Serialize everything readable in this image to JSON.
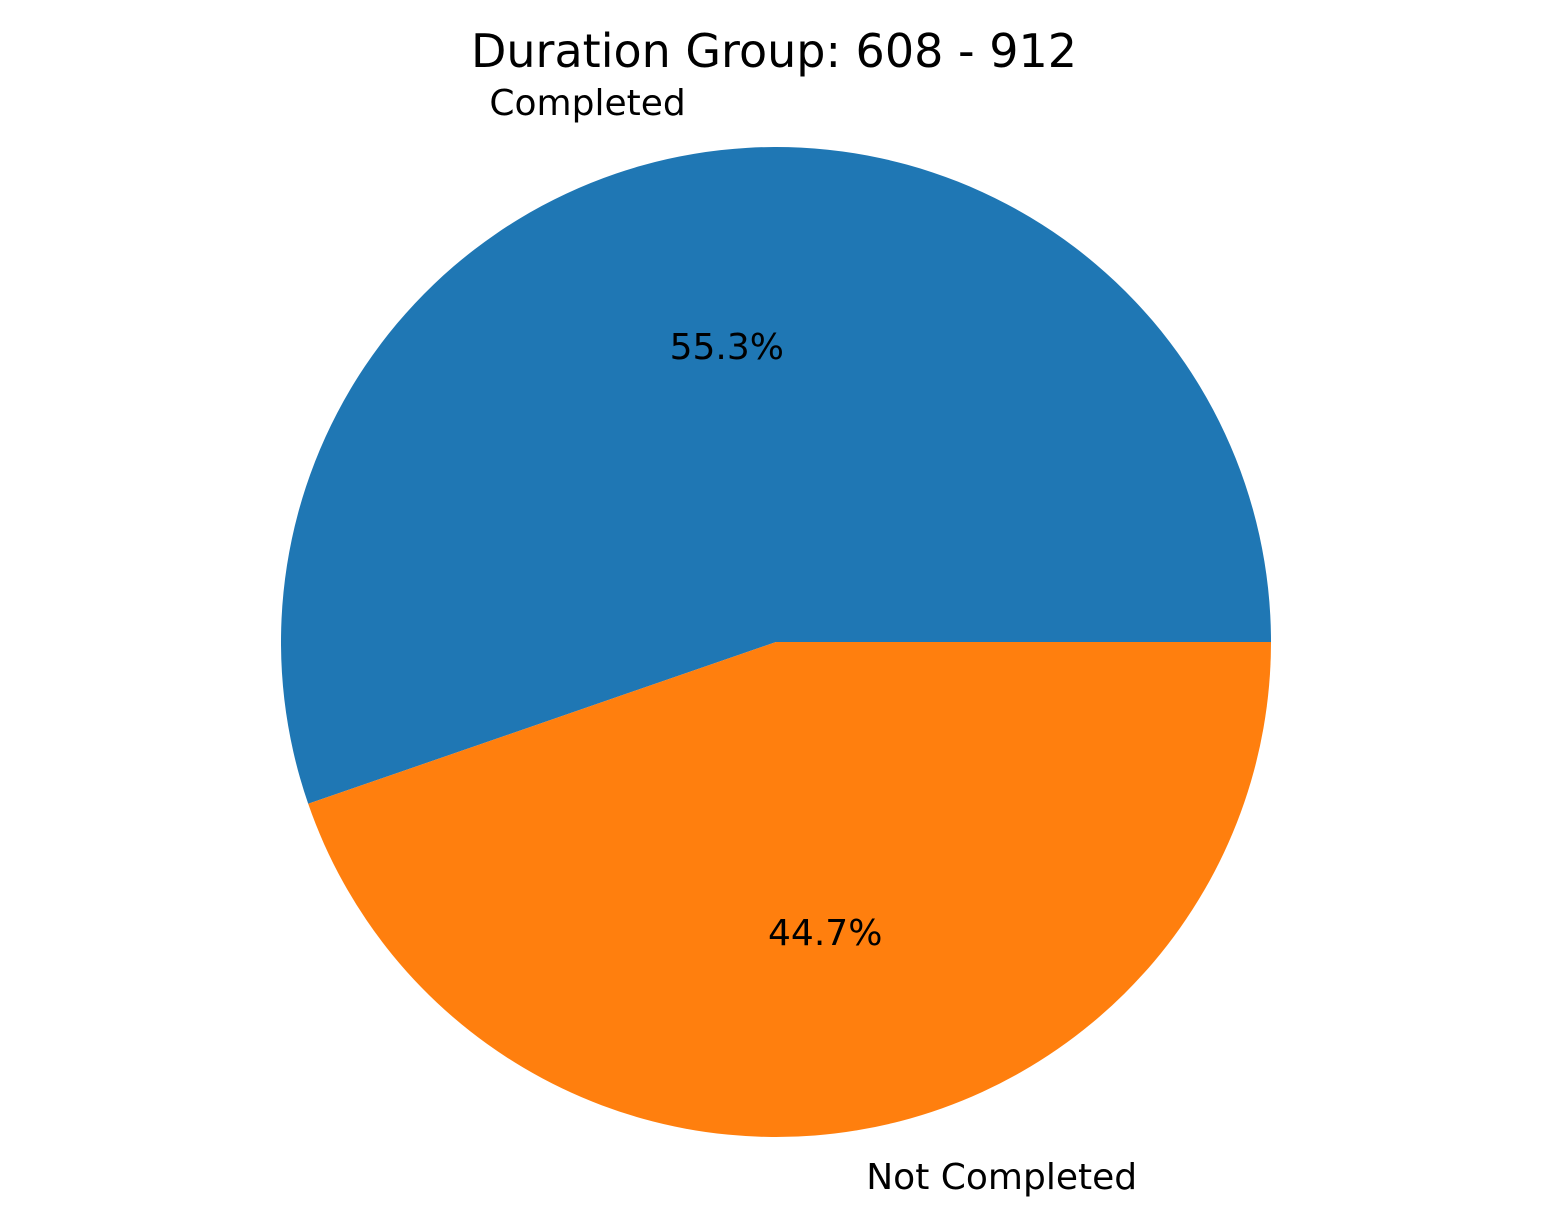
{
  "chart_data": {
    "type": "pie",
    "title": "Duration Group: 608 - 912",
    "slices": [
      {
        "label": "Completed",
        "value": 55.3,
        "pct_label": "55.3%",
        "color": "#1f77b4"
      },
      {
        "label": "Not Completed",
        "value": 44.7,
        "pct_label": "44.7%",
        "color": "#ff7f0e"
      }
    ],
    "start_angle_deg": 0,
    "direction": "counterclockwise"
  }
}
